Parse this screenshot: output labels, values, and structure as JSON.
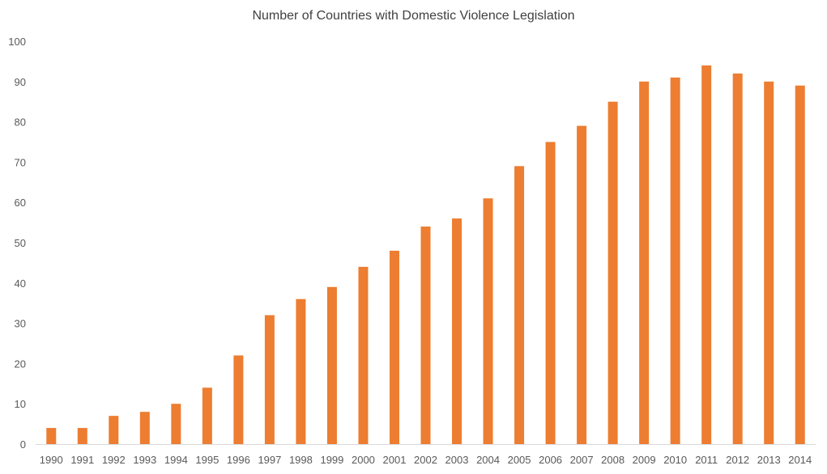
{
  "chart_data": {
    "type": "bar",
    "title": "Number of Countries with Domestic Violence Legislation",
    "xlabel": "",
    "ylabel": "",
    "categories": [
      "1990",
      "1991",
      "1992",
      "1993",
      "1994",
      "1995",
      "1996",
      "1997",
      "1998",
      "1999",
      "2000",
      "2001",
      "2002",
      "2003",
      "2004",
      "2005",
      "2006",
      "2007",
      "2008",
      "2009",
      "2010",
      "2011",
      "2012",
      "2013",
      "2014"
    ],
    "values": [
      4,
      4,
      7,
      8,
      10,
      14,
      22,
      32,
      36,
      39,
      44,
      48,
      54,
      56,
      61,
      69,
      75,
      79,
      85,
      90,
      91,
      94,
      92,
      90,
      89
    ],
    "ylim": [
      0,
      100
    ],
    "yticks": [
      0,
      10,
      20,
      30,
      40,
      50,
      60,
      70,
      80,
      90,
      100
    ],
    "grid": false,
    "legend": "none",
    "bar_color": "#ED7D31",
    "axis_color": "#D9D9D9",
    "tick_label_color": "#595959"
  }
}
